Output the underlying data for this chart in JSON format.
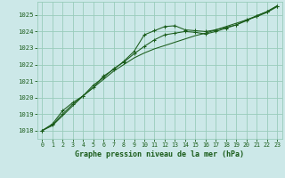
{
  "title": "Graphe pression niveau de la mer (hPa)",
  "background_color": "#cce8e8",
  "grid_color": "#99ccbb",
  "line_color": "#1a5c1a",
  "marker_color": "#1a5c1a",
  "xlim": [
    -0.5,
    23.5
  ],
  "ylim": [
    1017.5,
    1025.8
  ],
  "xticks": [
    0,
    1,
    2,
    3,
    4,
    5,
    6,
    7,
    8,
    9,
    10,
    11,
    12,
    13,
    14,
    15,
    16,
    17,
    18,
    19,
    20,
    21,
    22,
    23
  ],
  "yticks": [
    1018,
    1019,
    1020,
    1021,
    1022,
    1023,
    1024,
    1025
  ],
  "series1_x": [
    0,
    1,
    2,
    3,
    4,
    5,
    6,
    7,
    8,
    9,
    10,
    11,
    12,
    13,
    14,
    15,
    16,
    17,
    18,
    19,
    20,
    21,
    22,
    23
  ],
  "series1_y": [
    1018.0,
    1018.4,
    1019.2,
    1019.7,
    1020.1,
    1020.6,
    1021.3,
    1021.7,
    1022.2,
    1022.8,
    1023.8,
    1024.05,
    1024.3,
    1024.35,
    1024.1,
    1024.05,
    1024.0,
    1024.1,
    1024.25,
    1024.4,
    1024.7,
    1024.95,
    1025.2,
    1025.55
  ],
  "series2_x": [
    0,
    1,
    2,
    3,
    4,
    5,
    6,
    7,
    8,
    9,
    10,
    11,
    12,
    13,
    14,
    15,
    16,
    17,
    18,
    19,
    20,
    21,
    22,
    23
  ],
  "series2_y": [
    1018.0,
    1018.3,
    1018.9,
    1019.5,
    1020.1,
    1020.6,
    1021.1,
    1021.6,
    1022.0,
    1022.4,
    1022.7,
    1022.95,
    1023.15,
    1023.35,
    1023.55,
    1023.75,
    1023.9,
    1024.1,
    1024.3,
    1024.5,
    1024.7,
    1024.9,
    1025.15,
    1025.5
  ],
  "series3_x": [
    0,
    1,
    2,
    3,
    4,
    5,
    6,
    7,
    8,
    9,
    10,
    11,
    12,
    13,
    14,
    15,
    16,
    17,
    18,
    19,
    20,
    21,
    22,
    23
  ],
  "series3_y": [
    1018.0,
    1018.35,
    1019.0,
    1019.6,
    1020.1,
    1020.75,
    1021.2,
    1021.75,
    1022.15,
    1022.65,
    1023.1,
    1023.5,
    1023.8,
    1023.9,
    1024.0,
    1023.95,
    1023.85,
    1024.0,
    1024.2,
    1024.4,
    1024.65,
    1024.95,
    1025.2,
    1025.55
  ]
}
